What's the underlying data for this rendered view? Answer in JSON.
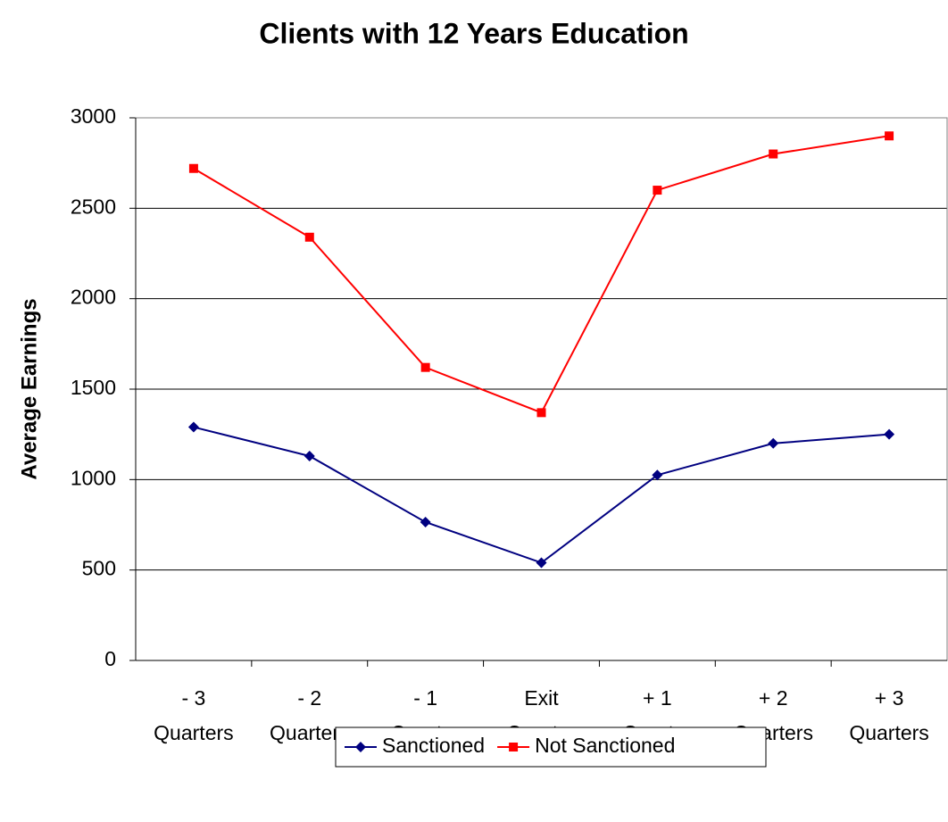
{
  "chart_data": {
    "type": "line",
    "title": "Clients with 12 Years Education",
    "y_label": "Average Earnings",
    "categories": [
      [
        "- 3",
        "Quarters"
      ],
      [
        "- 2",
        "Quarters"
      ],
      [
        "- 1",
        "Quarter"
      ],
      [
        "Exit",
        "Quarter"
      ],
      [
        "+ 1",
        "Quarter"
      ],
      [
        "+ 2",
        "Quarters"
      ],
      [
        "+ 3",
        "Quarters"
      ]
    ],
    "series": [
      {
        "name": "Sanctioned",
        "color": "#000080",
        "marker": "diamond",
        "values": [
          1290,
          1130,
          765,
          540,
          1025,
          1200,
          1250
        ]
      },
      {
        "name": "Not Sanctioned",
        "color": "#ff0000",
        "marker": "square",
        "values": [
          2720,
          2340,
          1620,
          1370,
          2600,
          2800,
          2900
        ]
      }
    ],
    "ylim": [
      0,
      3000
    ],
    "yticks": [
      0,
      500,
      1000,
      1500,
      2000,
      2500,
      3000
    ],
    "grid": true,
    "legend": "bottom"
  }
}
